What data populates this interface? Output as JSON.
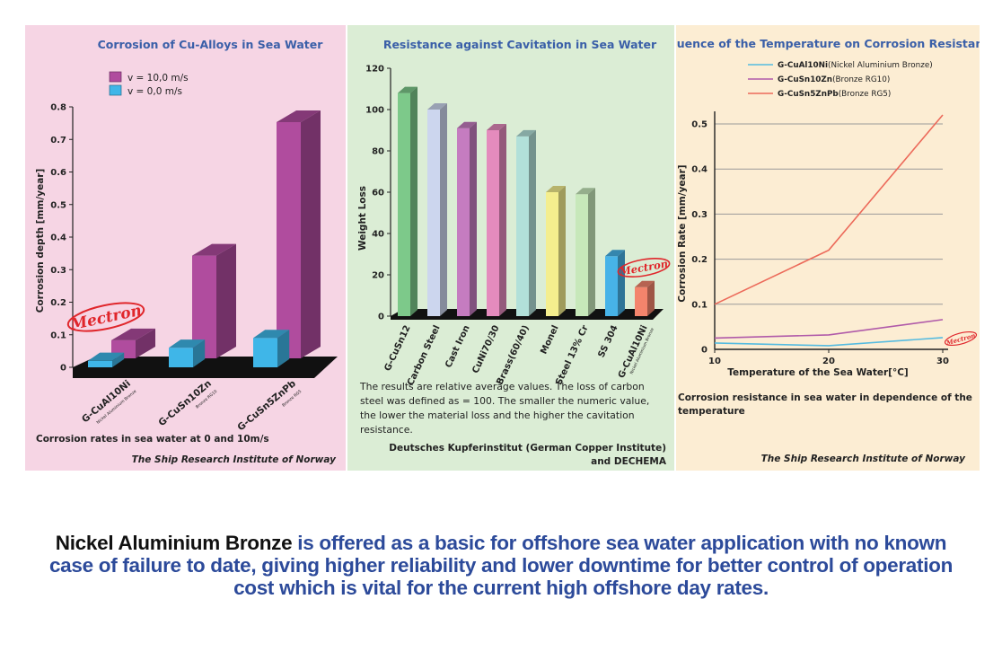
{
  "panel1": {
    "title": "Corrosion of Cu-Alloys in Sea Water",
    "caption": "Corrosion rates in sea water at 0 and 10m/s",
    "source": "The Ship Research Institute of Norway",
    "logo_text": "Mectron"
  },
  "panel2": {
    "caption_lines": [
      "The results are relative average values. The loss of carbon",
      "steel was defined as = 100. The smaller the numeric value,",
      "the lower the material loss and the higher the cavitation",
      "resistance."
    ],
    "source_lines": [
      "Deutsches Kupferinstitut (German Copper Institute)",
      "and DECHEMA"
    ],
    "logo_text": "Mectron"
  },
  "panel3": {
    "caption_lines": [
      "Corrosion resistance in sea water in dependence of the",
      "temperature"
    ],
    "source": "The Ship Research Institute of Norway",
    "logo_text": "Mectron"
  },
  "colors": {
    "purple": "#b04c9e",
    "blue": "#3fb6e8",
    "panel1_bg": "#f6d5e4",
    "panel2_bg": "#dbedd5",
    "panel3_bg": "#fcedd3",
    "title_blue": "#3a5fa8",
    "bottom_blue": "#2c4a9a"
  },
  "bottom_text": {
    "highlight": "Nickel Aluminium Bronze",
    "rest": " is offered as a basic for offshore sea water application with no known case of failure to date, giving higher reliability and lower downtime for better control of operation cost which is vital for the current high offshore day rates."
  },
  "chart_data": [
    {
      "type": "bar",
      "title": "Corrosion of Cu-Alloys in Sea Water",
      "ylabel": "Corrosion depth [mm/year]",
      "ylim": [
        0,
        0.8
      ],
      "yticks": [
        "0",
        "0.1",
        "0.2",
        "0.3",
        "0.4",
        "0.5",
        "0.6",
        "0.7",
        "0.8"
      ],
      "categories": [
        "G-CuAl10Ni",
        "G-CuSn10Zn",
        "G-CuSn5ZnPb"
      ],
      "category_sublabels": [
        "Nickel Aluminium Bronze",
        "Bronze RG10",
        "Bronze RG5"
      ],
      "series": [
        {
          "name": "v = 0,0 m/s",
          "values": [
            0.02,
            0.06,
            0.09
          ],
          "color": "#3fb6e8"
        },
        {
          "name": "v = 10,0 m/s",
          "values": [
            0.05,
            0.31,
            0.72
          ],
          "color": "#b04c9e"
        }
      ],
      "legend": "top-left"
    },
    {
      "type": "bar",
      "title": "Resistance against Cavitation in Sea Water",
      "ylabel": "Weight Loss",
      "ylim": [
        0,
        120
      ],
      "yticks": [
        "0",
        "20",
        "40",
        "60",
        "80",
        "100",
        "120"
      ],
      "categories": [
        "G-CuSn12",
        "Carbon Steel",
        "Cast Iron",
        "CuNi70/30",
        "Brass(60/40)",
        "Monel",
        "Steel 13% Cr",
        "SS 304",
        "G-CuAl10Ni"
      ],
      "category_sublabels": [
        "",
        "",
        "",
        "",
        "",
        "",
        "",
        "",
        "Nickel Aluminium Bronze"
      ],
      "values": [
        108,
        100,
        91,
        90,
        87,
        60,
        59,
        29,
        14
      ],
      "colors": [
        "#7dc98a",
        "#ccd6ee",
        "#c57cc0",
        "#e48bbd",
        "#b2e0d9",
        "#f4ee8e",
        "#c7e8ba",
        "#47b3e8",
        "#f3846c"
      ]
    },
    {
      "type": "line",
      "title": "Influence of the Temperature on Corrosion Resistance",
      "xlabel": "Temperature of the Sea Water[°C]",
      "ylabel": "Corrosion Rate [mm/year]",
      "x": [
        10,
        20,
        30
      ],
      "xticks": [
        "10",
        "20",
        "30"
      ],
      "ylim": [
        0,
        0.5
      ],
      "yticks": [
        "0",
        "0.1",
        "0.2",
        "0.3",
        "0.4",
        "0.5"
      ],
      "grid": true,
      "legend": "top",
      "series": [
        {
          "name_bold": "G-CuAl10Ni",
          "name_rest": "(Nickel Aluminium Bronze)",
          "values": [
            0.014,
            0.008,
            0.026
          ],
          "color": "#55bbe0"
        },
        {
          "name_bold": "G-CuSn10Zn",
          "name_rest": "(Bronze RG10)",
          "values": [
            0.025,
            0.032,
            0.066
          ],
          "color": "#b05aa9"
        },
        {
          "name_bold": "G-CuSn5ZnPb",
          "name_rest": "(Bronze RG5)",
          "values": [
            0.1,
            0.22,
            0.52
          ],
          "color": "#ec6a5a"
        }
      ]
    }
  ]
}
